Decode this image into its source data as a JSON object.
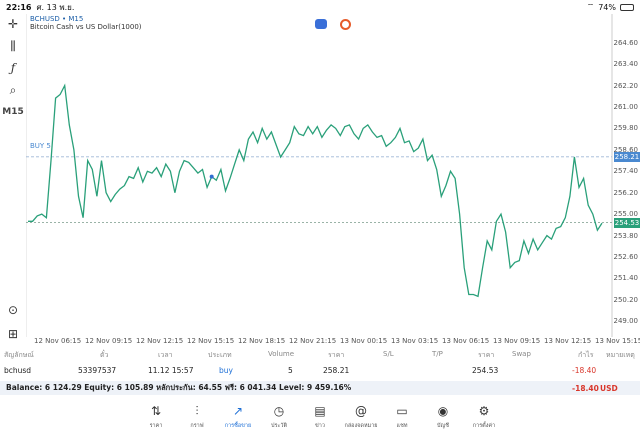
{
  "status": {
    "time": "22:16",
    "date": "ศ. 13 พ.ย.",
    "battery": "74%"
  },
  "chart": {
    "symbol_title": "BCHUSD • M15",
    "symbol_desc": "Bitcoin Cash vs US Dollar(1000)",
    "timeframe": "M15",
    "buy_label": "BUY 5",
    "buy_price_tag": "258.21",
    "current_price_tag": "254.53",
    "line_color": "#2aa07a",
    "buy_color": "#4a89d0",
    "y_ticks": [
      "264.60",
      "263.40",
      "262.20",
      "261.00",
      "259.80",
      "258.60",
      "257.40",
      "256.20",
      "255.00",
      "253.80",
      "252.60",
      "251.40",
      "250.20",
      "249.00"
    ],
    "x_ticks": [
      "12 Nov 06:15",
      "12 Nov 09:15",
      "12 Nov 12:15",
      "12 Nov 15:15",
      "12 Nov 18:15",
      "12 Nov 21:15",
      "13 Nov 00:15",
      "13 Nov 03:15",
      "13 Nov 06:15",
      "13 Nov 09:15",
      "13 Nov 12:15",
      "13 Nov 15:15"
    ]
  },
  "chart_data": {
    "type": "line",
    "title": "",
    "series": [
      {
        "name": "BCHUSD",
        "values": [
          254.6,
          254.6,
          254.9,
          255.0,
          254.8,
          258.0,
          261.5,
          261.7,
          262.2,
          260.0,
          258.6,
          256.0,
          254.8,
          258.0,
          257.5,
          256.0,
          258.0,
          256.2,
          255.7,
          256.1,
          256.4,
          256.6,
          257.1,
          257.0,
          257.6,
          256.8,
          257.4,
          257.3,
          257.6,
          257.1,
          257.8,
          257.4,
          256.2,
          257.4,
          258.0,
          257.9,
          257.6,
          257.3,
          257.5,
          256.5,
          257.1,
          256.9,
          257.5,
          256.3,
          257.0,
          257.8,
          258.6,
          258.0,
          259.2,
          259.6,
          259.0,
          259.8,
          259.2,
          259.6,
          258.9,
          258.2,
          258.6,
          259.0,
          259.9,
          259.5,
          259.4,
          259.9,
          259.5,
          259.9,
          259.3,
          259.7,
          260.0,
          259.8,
          259.4,
          259.9,
          260.0,
          259.5,
          259.2,
          259.8,
          260.0,
          259.6,
          259.3,
          259.4,
          258.8,
          259.0,
          259.3,
          259.8,
          259.0,
          259.1,
          258.5,
          258.7,
          259.2,
          258.0,
          258.3,
          257.5,
          256.0,
          256.6,
          257.4,
          257.0,
          255.0,
          252.0,
          250.5,
          250.5,
          250.4,
          252.0,
          253.5,
          253.0,
          254.6,
          255.0,
          254.0,
          252.0,
          252.3,
          252.4,
          253.5,
          252.8,
          253.6,
          253.0,
          253.4,
          253.8,
          253.6,
          254.2,
          254.3,
          254.8,
          256.0,
          258.2,
          256.5,
          257.0,
          255.5,
          255.0,
          254.1,
          254.5
        ],
        "color": "#2aa07a"
      }
    ],
    "x_ticks": [
      "12 Nov 06:15",
      "12 Nov 09:15",
      "12 Nov 12:15",
      "12 Nov 15:15",
      "12 Nov 18:15",
      "12 Nov 21:15",
      "13 Nov 00:15",
      "13 Nov 03:15",
      "13 Nov 06:15",
      "13 Nov 09:15",
      "13 Nov 12:15",
      "13 Nov 15:15"
    ],
    "ylim": [
      248.4,
      265.2
    ],
    "buy_level": 258.21,
    "current_level": 254.53,
    "grid": false
  },
  "trade_table": {
    "headers": [
      "สัญลักษณ์",
      "ตั๋ว",
      "เวลา",
      "ประเภท",
      "Volume",
      "ราคา",
      "S/L",
      "T/P",
      "ราคา",
      "Swap",
      "กำไร",
      "หมายเหตุ"
    ],
    "row": {
      "symbol": "bchusd",
      "ticket": "53397537",
      "time": "11.12 15:57",
      "type": "buy",
      "volume": "5",
      "open_price": "258.21",
      "current_price": "254.53",
      "profit": "-18.40"
    }
  },
  "balance": {
    "text": "Balance: 6 124.29 Equity: 6 105.89 หลักประกัน: 64.55 ฟรี: 6 041.34 Level: 9 459.16%",
    "profit": "-18.40",
    "currency": "USD"
  },
  "nav": [
    {
      "id": "quotes",
      "label": "ราคา",
      "icon": "⇅"
    },
    {
      "id": "chart",
      "label": "กราฟ",
      "icon": "⫶"
    },
    {
      "id": "trade",
      "label": "การซื้อขาย",
      "icon": "↗"
    },
    {
      "id": "history",
      "label": "ประวัติ",
      "icon": "◷"
    },
    {
      "id": "news",
      "label": "ข่าว",
      "icon": "▤"
    },
    {
      "id": "mail",
      "label": "กล่องจดหมาย",
      "icon": "@"
    },
    {
      "id": "chat",
      "label": "แชท",
      "icon": "▭"
    },
    {
      "id": "accounts",
      "label": "บัญชี",
      "icon": "◉"
    },
    {
      "id": "settings",
      "label": "การตั้งค่า",
      "icon": "⚙"
    }
  ]
}
